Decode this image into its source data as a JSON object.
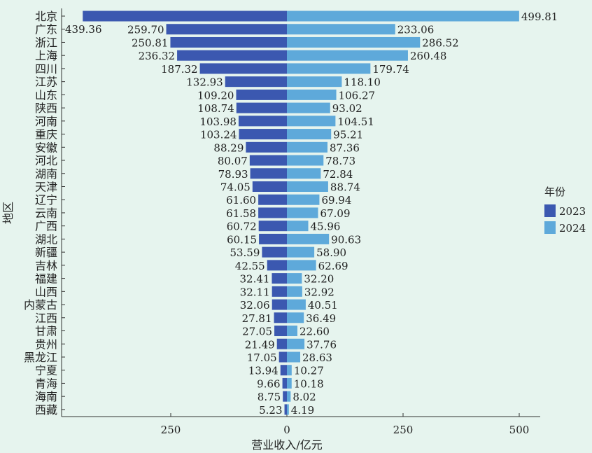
{
  "chart_data": {
    "type": "bar",
    "subtype": "diverging-horizontal",
    "title": "",
    "xlabel": "营业收入/亿元",
    "ylabel": "地区",
    "xticks": [
      {
        "value": -250,
        "label": "250"
      },
      {
        "value": 0,
        "label": "0"
      },
      {
        "value": 250,
        "label": "250"
      },
      {
        "value": 500,
        "label": "500"
      }
    ],
    "xlim": [
      -450,
      546
    ],
    "legend": {
      "title": "年份",
      "position": "right"
    },
    "categories": [
      "北京",
      "广东",
      "浙江",
      "上海",
      "四川",
      "江苏",
      "山东",
      "陕西",
      "河南",
      "重庆",
      "安徽",
      "河北",
      "湖南",
      "天津",
      "辽宁",
      "云南",
      "广西",
      "湖北",
      "新疆",
      "吉林",
      "福建",
      "山西",
      "内蒙古",
      "江西",
      "甘肃",
      "贵州",
      "黑龙江",
      "宁夏",
      "青海",
      "海南",
      "西藏"
    ],
    "series": [
      {
        "name": "2023",
        "color": "#3b58b0",
        "side": "left",
        "values": [
          439.36,
          259.7,
          250.81,
          236.32,
          187.32,
          132.93,
          109.2,
          108.74,
          103.98,
          103.24,
          88.29,
          80.07,
          78.93,
          74.05,
          61.6,
          61.58,
          60.72,
          60.15,
          53.59,
          42.55,
          32.41,
          32.11,
          32.06,
          27.81,
          27.05,
          21.49,
          17.05,
          13.94,
          9.66,
          8.75,
          5.23
        ],
        "labels": [
          "439.36",
          "259.70",
          "250.81",
          "236.32",
          "187.32",
          "132.93",
          "109.20",
          "108.74",
          "103.98",
          "103.24",
          "88.29",
          "80.07",
          "78.93",
          "74.05",
          "61.60",
          "61.58",
          "60.72",
          "60.15",
          "53.59",
          "42.55",
          "32.41",
          "32.11",
          "32.06",
          "27.81",
          "27.05",
          "21.49",
          "17.05",
          "13.94",
          "9.66",
          "8.75",
          "5.23"
        ]
      },
      {
        "name": "2024",
        "color": "#5ea9da",
        "side": "right",
        "values": [
          499.81,
          233.06,
          286.52,
          260.48,
          179.74,
          118.1,
          106.27,
          93.02,
          104.51,
          95.21,
          87.36,
          78.73,
          72.84,
          88.74,
          69.94,
          67.09,
          45.96,
          90.63,
          58.9,
          62.69,
          32.2,
          32.92,
          40.51,
          36.49,
          22.6,
          37.76,
          28.63,
          10.27,
          10.18,
          8.02,
          4.19
        ],
        "labels": [
          "499.81",
          "233.06",
          "286.52",
          "260.48",
          "179.74",
          "118.10",
          "106.27",
          "93.02",
          "104.51",
          "95.21",
          "87.36",
          "78.73",
          "72.84",
          "88.74",
          "69.94",
          "67.09",
          "45.96",
          "90.63",
          "58.90",
          "62.69",
          "32.20",
          "32.92",
          "40.51",
          "36.49",
          "22.60",
          "37.76",
          "28.63",
          "10.27",
          "10.18",
          "8.02",
          "4.19"
        ]
      }
    ]
  }
}
